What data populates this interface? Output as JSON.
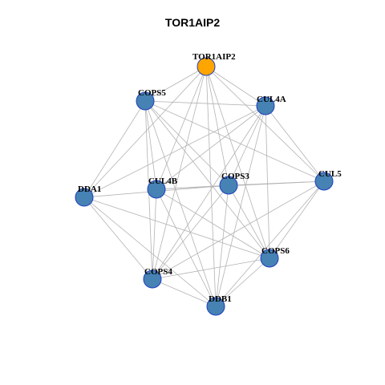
{
  "title": "TOR1AIP2",
  "colors": {
    "seed": "#ffa500",
    "node": "#4682b4",
    "node_border": "#1f3fbf",
    "edge": "#b3b3b3"
  },
  "nodes": [
    {
      "id": "TOR1AIP2",
      "label": "TOR1AIP2",
      "seed": true
    },
    {
      "id": "COPS5",
      "label": "COPS5",
      "seed": false
    },
    {
      "id": "CUL4A",
      "label": "CUL4A",
      "seed": false
    },
    {
      "id": "CUL5",
      "label": "CUL5",
      "seed": false
    },
    {
      "id": "COPS3",
      "label": "COPS3",
      "seed": false
    },
    {
      "id": "CUL4B",
      "label": "CUL4B",
      "seed": false
    },
    {
      "id": "DDA1",
      "label": "DDA1",
      "seed": false
    },
    {
      "id": "COPS6",
      "label": "COPS6",
      "seed": false
    },
    {
      "id": "COPS4",
      "label": "COPS4",
      "seed": false
    },
    {
      "id": "DDB1",
      "label": "DDB1",
      "seed": false
    }
  ],
  "edges": [
    [
      "TOR1AIP2",
      "COPS5"
    ],
    [
      "TOR1AIP2",
      "CUL4A"
    ],
    [
      "TOR1AIP2",
      "CUL5"
    ],
    [
      "TOR1AIP2",
      "COPS3"
    ],
    [
      "TOR1AIP2",
      "CUL4B"
    ],
    [
      "TOR1AIP2",
      "DDA1"
    ],
    [
      "TOR1AIP2",
      "COPS6"
    ],
    [
      "TOR1AIP2",
      "COPS4"
    ],
    [
      "TOR1AIP2",
      "DDB1"
    ],
    [
      "COPS5",
      "CUL4A"
    ],
    [
      "COPS5",
      "CUL5"
    ],
    [
      "COPS5",
      "COPS3"
    ],
    [
      "COPS5",
      "CUL4B"
    ],
    [
      "COPS5",
      "DDA1"
    ],
    [
      "COPS5",
      "COPS6"
    ],
    [
      "COPS5",
      "COPS4"
    ],
    [
      "COPS5",
      "DDB1"
    ],
    [
      "CUL4A",
      "CUL4B"
    ],
    [
      "CUL4A",
      "DDA1"
    ],
    [
      "CUL4A",
      "COPS3"
    ],
    [
      "CUL4A",
      "COPS6"
    ],
    [
      "CUL4A",
      "COPS4"
    ],
    [
      "CUL4A",
      "DDB1"
    ],
    [
      "CUL4A",
      "CUL5"
    ],
    [
      "CUL5",
      "COPS3"
    ],
    [
      "CUL5",
      "CUL4B"
    ],
    [
      "CUL5",
      "COPS6"
    ],
    [
      "CUL5",
      "COPS4"
    ],
    [
      "CUL5",
      "DDB1"
    ],
    [
      "COPS3",
      "DDA1"
    ],
    [
      "COPS3",
      "COPS6"
    ],
    [
      "COPS3",
      "COPS4"
    ],
    [
      "COPS3",
      "DDB1"
    ],
    [
      "COPS3",
      "CUL4B"
    ],
    [
      "CUL4B",
      "COPS6"
    ],
    [
      "CUL4B",
      "DDB1"
    ],
    [
      "CUL4B",
      "COPS4"
    ],
    [
      "DDA1",
      "COPS6"
    ],
    [
      "DDA1",
      "DDB1"
    ],
    [
      "DDA1",
      "COPS4"
    ],
    [
      "COPS6",
      "COPS4"
    ],
    [
      "COPS6",
      "DDB1"
    ],
    [
      "COPS4",
      "DDB1"
    ]
  ]
}
